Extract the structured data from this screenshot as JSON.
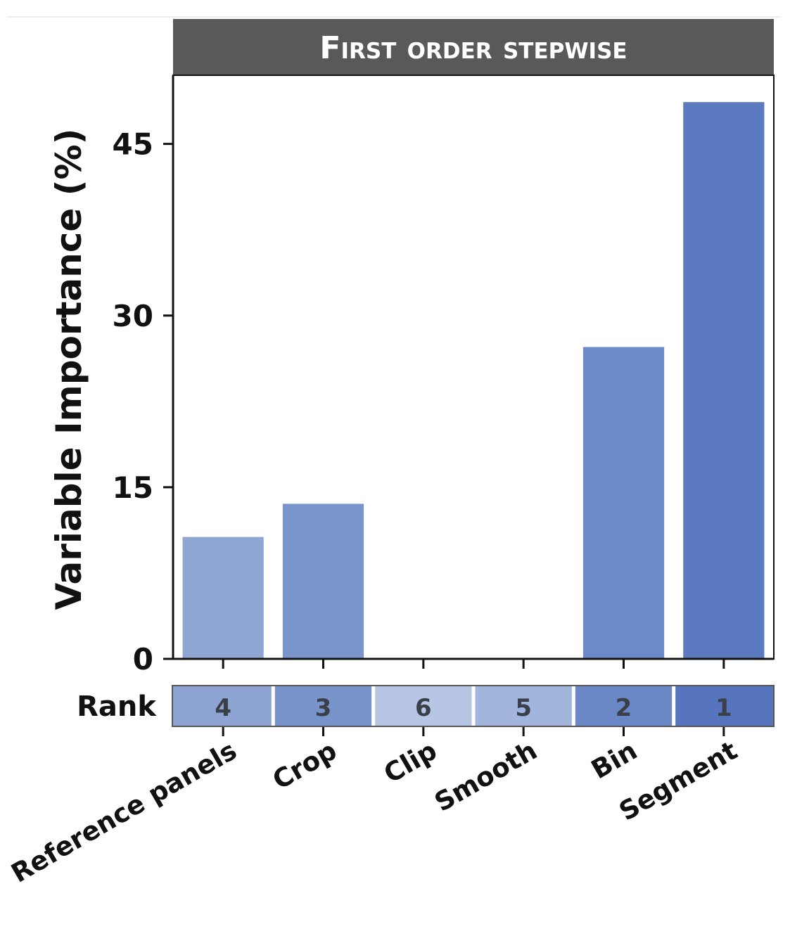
{
  "chart_data": {
    "type": "bar",
    "title": "First order stepwise",
    "ylabel": "Variable Importance (%)",
    "xlabel": "",
    "categories": [
      "Reference panels",
      "Crop",
      "Clip",
      "Smooth",
      "Bin",
      "Segment"
    ],
    "values": [
      10.7,
      13.6,
      0,
      0,
      27.3,
      48.7
    ],
    "ylim": [
      0,
      51
    ],
    "yticks": [
      0,
      15,
      30,
      45
    ],
    "grid": false,
    "legend": "none",
    "rank_label": "Rank",
    "ranks": [
      4,
      3,
      6,
      5,
      2,
      1
    ],
    "colors": {
      "title_bar": "#595959",
      "bars": [
        "#8fa6d3",
        "#7a95cc",
        "#a9bbe0",
        "#9cb1da",
        "#6c8ac8",
        "#5b79bf"
      ],
      "rank_cells": [
        "#8ea5d3",
        "#7993cb",
        "#b7c6e5",
        "#a2b5dc",
        "#6a88c6",
        "#5675bd"
      ],
      "axis": "#111111"
    }
  }
}
